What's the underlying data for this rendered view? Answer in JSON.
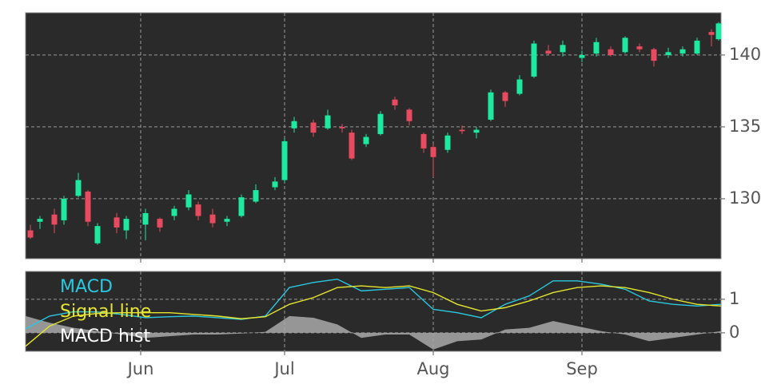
{
  "chart_data": [
    {
      "type": "candlestick",
      "x": [
        1,
        3,
        6,
        8,
        11,
        13,
        15,
        19,
        21,
        25,
        28,
        31,
        34,
        36,
        39,
        42,
        45,
        48,
        52,
        54,
        56,
        60,
        63,
        66,
        68,
        71,
        74,
        77,
        80,
        83,
        85,
        88,
        91,
        94,
        97,
        100,
        103,
        106,
        109,
        112,
        116,
        119,
        122,
        125,
        128,
        131,
        134,
        137,
        140,
        143,
        144.5
      ],
      "open": [
        127.8,
        128.4,
        128.9,
        128.5,
        130.2,
        130.5,
        126.9,
        128.7,
        127.8,
        128.2,
        128.6,
        128.8,
        129.4,
        129.6,
        128.9,
        128.4,
        128.8,
        129.8,
        130.8,
        131.3,
        134.9,
        135.3,
        134.9,
        135.0,
        134.6,
        133.8,
        134.5,
        136.9,
        136.2,
        134.5,
        133.6,
        133.4,
        134.8,
        134.6,
        135.5,
        137.4,
        137.3,
        138.5,
        140.3,
        140.2,
        139.8,
        140.1,
        140.4,
        140.2,
        140.6,
        140.4,
        140.0,
        140.1,
        140.1,
        141.6,
        141.1
      ],
      "high": [
        128.2,
        128.8,
        129.3,
        130.2,
        131.8,
        130.6,
        128.3,
        129.0,
        128.8,
        129.3,
        128.7,
        129.5,
        130.6,
        129.8,
        129.3,
        128.8,
        130.3,
        131.0,
        131.5,
        134.2,
        135.7,
        135.5,
        136.2,
        135.2,
        134.8,
        134.5,
        136.1,
        137.1,
        136.3,
        134.6,
        133.8,
        134.6,
        135.1,
        135.0,
        137.6,
        137.5,
        138.6,
        141.0,
        140.7,
        141.0,
        140.3,
        141.2,
        140.6,
        141.3,
        140.8,
        140.5,
        140.5,
        140.6,
        141.2,
        141.8,
        142.3
      ],
      "low": [
        127.2,
        127.9,
        127.6,
        128.2,
        130.1,
        128.1,
        126.8,
        127.6,
        127.2,
        127.1,
        127.7,
        128.5,
        129.2,
        128.5,
        128.0,
        128.1,
        128.7,
        129.7,
        130.6,
        131.1,
        134.6,
        134.3,
        134.8,
        134.6,
        132.7,
        133.6,
        134.4,
        136.2,
        135.1,
        133.2,
        131.5,
        133.2,
        134.5,
        134.2,
        135.4,
        136.4,
        137.2,
        138.4,
        140.0,
        139.9,
        139.5,
        139.9,
        139.9,
        140.1,
        140.2,
        139.2,
        139.8,
        139.9,
        140.0,
        140.6,
        141.0
      ],
      "close": [
        127.3,
        128.6,
        128.2,
        130.0,
        131.3,
        128.4,
        128.1,
        128.0,
        128.6,
        129.0,
        128.0,
        129.3,
        130.3,
        128.8,
        128.3,
        128.6,
        130.1,
        130.6,
        131.2,
        134.0,
        135.4,
        134.6,
        135.8,
        134.9,
        132.8,
        134.3,
        135.9,
        136.5,
        135.4,
        133.5,
        132.9,
        134.4,
        134.7,
        134.8,
        137.4,
        136.8,
        138.3,
        140.8,
        140.1,
        140.7,
        140.0,
        140.9,
        140.0,
        141.2,
        140.4,
        139.6,
        140.2,
        140.4,
        141.0,
        141.4,
        142.2
      ],
      "up_color": "#1de9a0",
      "down_color": "#e84a5f",
      "xlim": [
        0,
        145
      ],
      "ylim": [
        125.83,
        142.94
      ],
      "yticks": [
        130,
        135,
        140
      ],
      "grid": true
    },
    {
      "type": "line",
      "x": [
        0,
        5,
        10,
        15,
        20,
        25,
        30,
        35,
        40,
        45,
        50,
        55,
        60,
        65,
        70,
        75,
        80,
        85,
        90,
        95,
        100,
        105,
        110,
        115,
        120,
        125,
        130,
        135,
        140,
        145
      ],
      "series": [
        {
          "name": "MACD",
          "color": "#2ac8e0",
          "style": "line",
          "values": [
            0.12,
            0.5,
            0.63,
            0.62,
            0.55,
            0.45,
            0.48,
            0.5,
            0.45,
            0.4,
            0.5,
            1.35,
            1.5,
            1.6,
            1.25,
            1.3,
            1.35,
            0.7,
            0.6,
            0.45,
            0.85,
            1.1,
            1.55,
            1.55,
            1.45,
            1.3,
            0.95,
            0.85,
            0.8,
            0.85
          ]
        },
        {
          "name": "Signal line",
          "color": "#e6e62e",
          "style": "line",
          "values": [
            -0.4,
            0.2,
            0.5,
            0.58,
            0.6,
            0.6,
            0.6,
            0.55,
            0.5,
            0.42,
            0.48,
            0.85,
            1.05,
            1.35,
            1.4,
            1.35,
            1.4,
            1.2,
            0.85,
            0.65,
            0.75,
            0.95,
            1.2,
            1.35,
            1.4,
            1.35,
            1.2,
            1.0,
            0.85,
            0.8
          ]
        },
        {
          "name": "MACD hist",
          "color": "#a9a9a9",
          "style": "area",
          "values": [
            0.5,
            0.3,
            0.15,
            0.05,
            -0.05,
            -0.15,
            -0.1,
            -0.05,
            -0.05,
            -0.02,
            0.03,
            0.5,
            0.45,
            0.25,
            -0.15,
            -0.05,
            -0.05,
            -0.5,
            -0.25,
            -0.2,
            0.1,
            0.15,
            0.35,
            0.2,
            0.05,
            -0.05,
            -0.25,
            -0.15,
            -0.05,
            0.05
          ]
        }
      ],
      "xlim": [
        0,
        145
      ],
      "xticks": [
        {
          "value": 24,
          "label": "Jun"
        },
        {
          "value": 54,
          "label": "Jul"
        },
        {
          "value": 85,
          "label": "Aug"
        },
        {
          "value": 116,
          "label": "Sep"
        }
      ],
      "ylim": [
        -0.55,
        1.83
      ],
      "yticks": [
        0,
        1
      ],
      "grid": true
    }
  ]
}
